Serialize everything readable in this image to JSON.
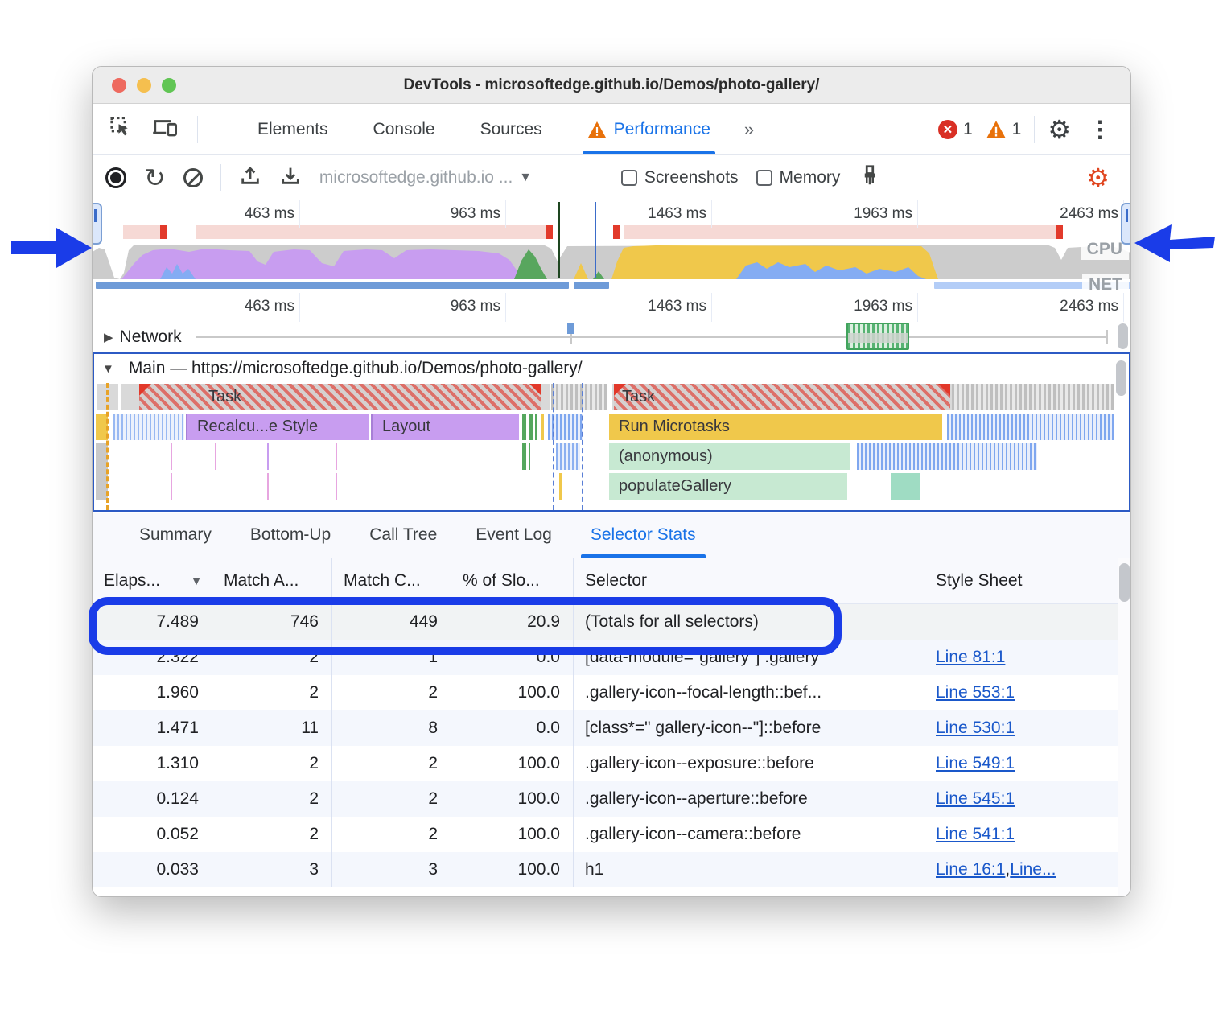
{
  "window": {
    "title": "DevTools - microsoftedge.github.io/Demos/photo-gallery/"
  },
  "tabbar": {
    "tabs": [
      {
        "label": "Elements",
        "active": false,
        "warning": false
      },
      {
        "label": "Console",
        "active": false,
        "warning": false
      },
      {
        "label": "Sources",
        "active": false,
        "warning": false
      },
      {
        "label": "Performance",
        "active": true,
        "warning": true
      }
    ],
    "overflow": "»",
    "error_count": "1",
    "warning_count": "1"
  },
  "toolbar": {
    "url_select_value": "microsoftedge.github.io ...",
    "screenshots_label": "Screenshots",
    "memory_label": "Memory"
  },
  "overview": {
    "time_labels": [
      "463 ms",
      "963 ms",
      "1463 ms",
      "1963 ms",
      "2463 ms"
    ],
    "cpu_label": "CPU",
    "net_label": "NET"
  },
  "tracks": {
    "network_label": "Network",
    "main_label": "Main — https://microsoftedge.github.io/Demos/photo-gallery/",
    "flame": {
      "task1": "Task",
      "task2": "Task",
      "recalc_style": "Recalcu...e Style",
      "layout": "Layout",
      "run_microtasks": "Run Microtasks",
      "anonymous": "(anonymous)",
      "populate_gallery": "populateGallery"
    }
  },
  "bottom_tabs": [
    {
      "label": "Summary",
      "active": false
    },
    {
      "label": "Bottom-Up",
      "active": false
    },
    {
      "label": "Call Tree",
      "active": false
    },
    {
      "label": "Event Log",
      "active": false
    },
    {
      "label": "Selector Stats",
      "active": true
    }
  ],
  "grid": {
    "columns": [
      "Elaps...",
      "Match A...",
      "Match C...",
      "% of Slo...",
      "Selector",
      "Style Sheet"
    ],
    "sorted_column": "Elaps...",
    "rows": [
      {
        "elapsed": "7.489",
        "match_attempts": "746",
        "match_count": "449",
        "pct_slow": "20.9",
        "selector": "(Totals for all selectors)",
        "links": [],
        "highlighted": true
      },
      {
        "elapsed": "2.322",
        "match_attempts": "2",
        "match_count": "1",
        "pct_slow": "0.0",
        "selector": "[data-module=\"gallery\"] .gallery",
        "links": [
          "Line 81:1"
        ],
        "highlighted": false
      },
      {
        "elapsed": "1.960",
        "match_attempts": "2",
        "match_count": "2",
        "pct_slow": "100.0",
        "selector": ".gallery-icon--focal-length::bef...",
        "links": [
          "Line 553:1"
        ],
        "highlighted": false
      },
      {
        "elapsed": "1.471",
        "match_attempts": "11",
        "match_count": "8",
        "pct_slow": "0.0",
        "selector": "[class*=\" gallery-icon--\"]::before",
        "links": [
          "Line 530:1"
        ],
        "highlighted": false
      },
      {
        "elapsed": "1.310",
        "match_attempts": "2",
        "match_count": "2",
        "pct_slow": "100.0",
        "selector": ".gallery-icon--exposure::before",
        "links": [
          "Line 549:1"
        ],
        "highlighted": false
      },
      {
        "elapsed": "0.124",
        "match_attempts": "2",
        "match_count": "2",
        "pct_slow": "100.0",
        "selector": ".gallery-icon--aperture::before",
        "links": [
          "Line 545:1"
        ],
        "highlighted": false
      },
      {
        "elapsed": "0.052",
        "match_attempts": "2",
        "match_count": "2",
        "pct_slow": "100.0",
        "selector": ".gallery-icon--camera::before",
        "links": [
          "Line 541:1"
        ],
        "highlighted": false
      },
      {
        "elapsed": "0.033",
        "match_attempts": "3",
        "match_count": "3",
        "pct_slow": "100.0",
        "selector": "h1",
        "links": [
          "Line 16:1",
          "Line..."
        ],
        "link_separator": " , ",
        "highlighted": false
      }
    ]
  },
  "colors": {
    "accent_blue": "#1a73e8",
    "annotation_blue": "#1a3ce8",
    "error_red": "#d93025",
    "warning_orange": "#e8710a"
  }
}
